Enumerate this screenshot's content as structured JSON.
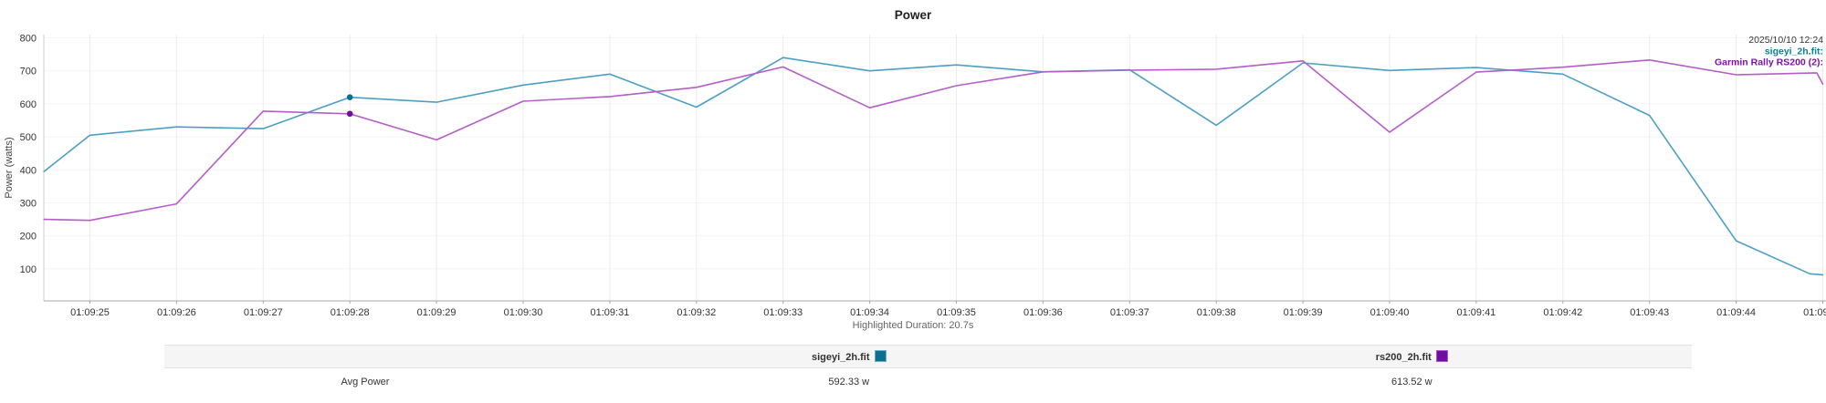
{
  "title": "Power",
  "highlighted_duration": "Highlighted Duration: 20.7s",
  "legend": {
    "timestamp": "2025/10/10 12:24",
    "series1_label": "sigeyi_2h.fit:",
    "series2_label": "Garmin Rally RS200 (2):"
  },
  "colors": {
    "sigeyi_line": "#4c9fc3",
    "sigeyi_dark": "#0c7f99",
    "rs200_line": "#b45ec7",
    "rs200_dark": "#7c12a6",
    "timestamp_text": "#333333",
    "grid_vertical": "#ececec",
    "grid_horizontal": "#f4f4f4",
    "axis_left": "#cccccc",
    "axis_bottom": "#a8a8a8",
    "tick_text": "#333333"
  },
  "chart_data": {
    "type": "line",
    "title": "Power",
    "xlabel": "",
    "ylabel": "Power (watts)",
    "y_ticks": [
      100,
      200,
      300,
      400,
      500,
      600,
      700,
      800
    ],
    "ylim": [
      20,
      825
    ],
    "grid": "on",
    "legend_position": "top-right",
    "x_tick_labels": [
      "01:09:25",
      "01:09:26",
      "01:09:27",
      "01:09:28",
      "01:09:29",
      "01:09:30",
      "01:09:31",
      "01:09:32",
      "01:09:33",
      "01:09:34",
      "01:09:35",
      "01:09:36",
      "01:09:37",
      "01:09:38",
      "01:09:39",
      "01:09:40",
      "01:09:41",
      "01:09:42",
      "01:09:43",
      "01:09:44",
      "01:09:45"
    ],
    "x_unit": "seconds (01:09:xx)",
    "series": [
      {
        "name": "sigeyi_2h.fit",
        "color": "#4c9fc3",
        "marker_color": "#0c6f8e",
        "points": [
          [
            24.47,
            395
          ],
          [
            25,
            505
          ],
          [
            26,
            530
          ],
          [
            27,
            525
          ],
          [
            28,
            620
          ],
          [
            29,
            605
          ],
          [
            30,
            657
          ],
          [
            31,
            690
          ],
          [
            32,
            590
          ],
          [
            33,
            740
          ],
          [
            34,
            700
          ],
          [
            35,
            718
          ],
          [
            36,
            697
          ],
          [
            37,
            703
          ],
          [
            38,
            535
          ],
          [
            39,
            724
          ],
          [
            40,
            701
          ],
          [
            41,
            710
          ],
          [
            42,
            690
          ],
          [
            43,
            565
          ],
          [
            44,
            185
          ],
          [
            44.85,
            85
          ],
          [
            45,
            82
          ]
        ],
        "markers": [
          [
            28,
            620
          ]
        ]
      },
      {
        "name": "Garmin Rally RS200 (2)",
        "color": "#b45ec7",
        "marker_color": "#720c9e",
        "points": [
          [
            24.47,
            250
          ],
          [
            25,
            247
          ],
          [
            26,
            297
          ],
          [
            27,
            578
          ],
          [
            28,
            570
          ],
          [
            29,
            491
          ],
          [
            30,
            608
          ],
          [
            31,
            622
          ],
          [
            32,
            650
          ],
          [
            33,
            712
          ],
          [
            34,
            588
          ],
          [
            35,
            655
          ],
          [
            36,
            697
          ],
          [
            37,
            702
          ],
          [
            38,
            705
          ],
          [
            39,
            730
          ],
          [
            40,
            514
          ],
          [
            41,
            696
          ],
          [
            42,
            711
          ],
          [
            43,
            733
          ],
          [
            44,
            688
          ],
          [
            44.93,
            694
          ],
          [
            45,
            660
          ]
        ],
        "markers": [
          [
            28,
            570
          ]
        ]
      }
    ]
  },
  "table": {
    "header": [
      "",
      "sigeyi_2h.fit",
      "rs200_2h.fit"
    ],
    "rows": [
      [
        "Avg Power",
        "592.33 w",
        "613.52 w"
      ]
    ],
    "swatches": {
      "sigeyi": {
        "fill": "#0d6f8e",
        "border": "#6aaec6"
      },
      "rs200": {
        "fill": "#720c9e",
        "border": "#a95cc9"
      }
    }
  }
}
